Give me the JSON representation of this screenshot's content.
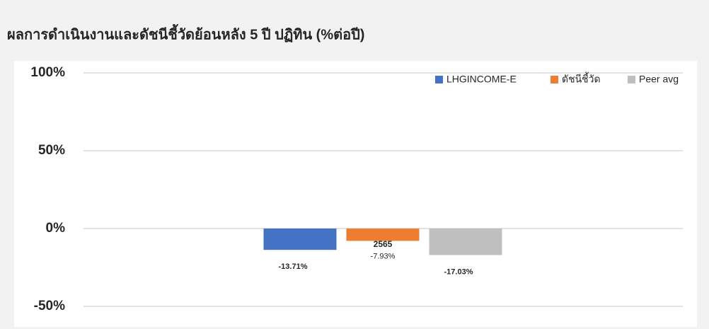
{
  "chart_data": {
    "type": "bar",
    "title": "ผลการดำเนินงานและดัชนีชี้วัดย้อนหลัง 5 ปี ปฏิทิน (%ต่อปี)",
    "categories": [
      "2565"
    ],
    "series": [
      {
        "name": "LHGINCOME-E",
        "color": "#4472c4",
        "values": [
          -13.71
        ],
        "value_labels": [
          "-13.71%"
        ]
      },
      {
        "name": "ดัชนีชี้วัด",
        "color": "#ed7d31",
        "values": [
          -7.93
        ],
        "value_labels": [
          "-7.93%"
        ]
      },
      {
        "name": "Peer avg",
        "color": "#bfbfbf",
        "values": [
          -17.03
        ],
        "value_labels": [
          "-17.03%"
        ]
      }
    ],
    "ylim": [
      -50,
      100
    ],
    "yticks": [
      {
        "value": -50,
        "label": "-50%"
      },
      {
        "value": 0,
        "label": "0%"
      },
      {
        "value": 50,
        "label": "50%"
      },
      {
        "value": 100,
        "label": "100%"
      }
    ],
    "grid": true,
    "legend": "top-right"
  }
}
